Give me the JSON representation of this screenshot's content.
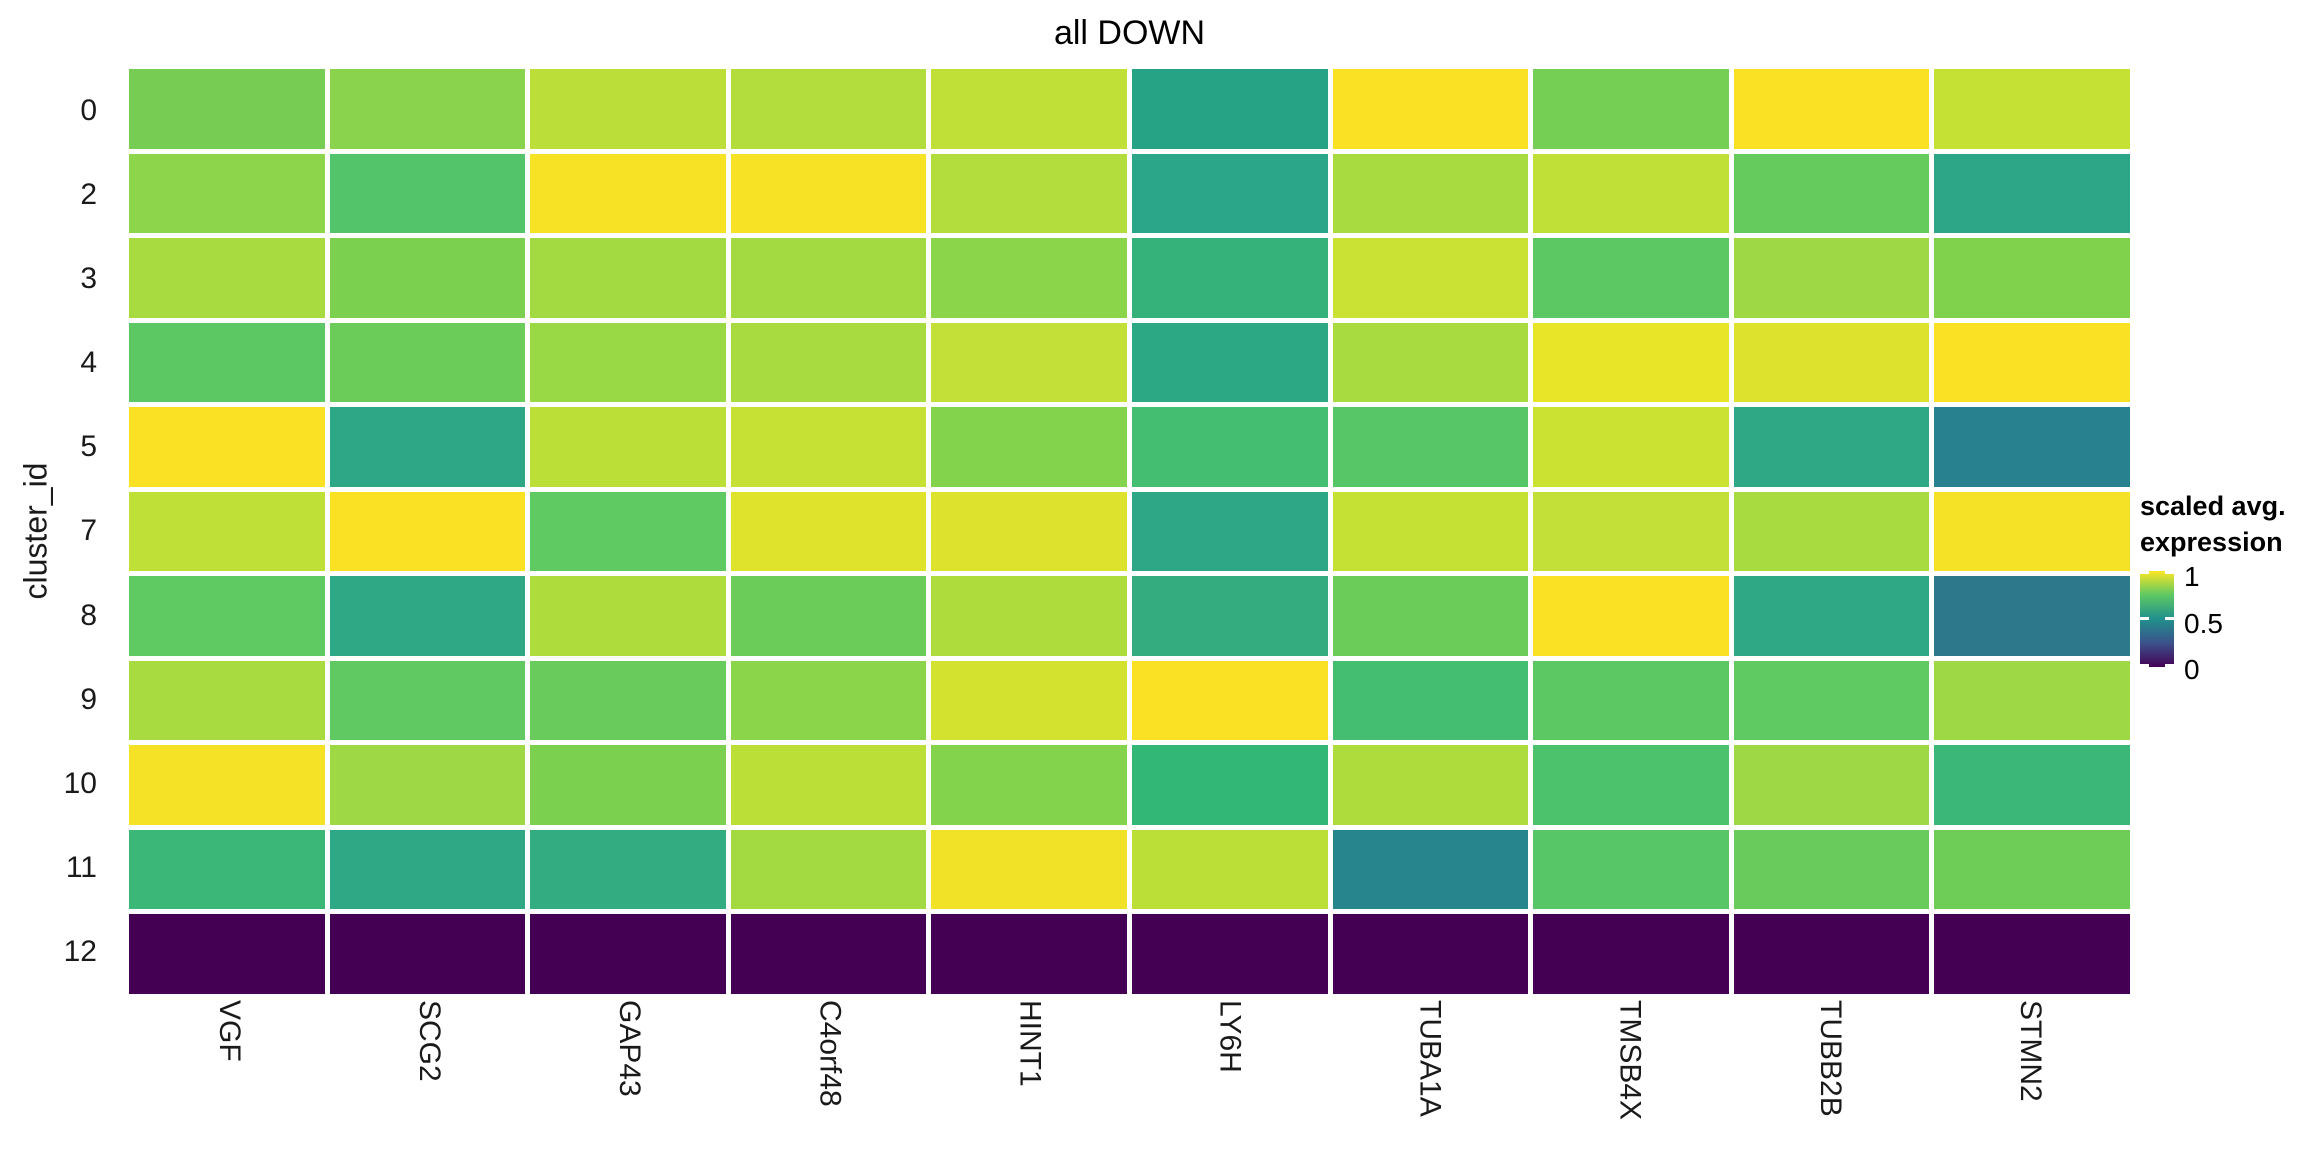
{
  "chart_data": {
    "type": "heatmap",
    "title": "all DOWN",
    "xlabel": "",
    "ylabel": "cluster_id",
    "row_labels": [
      "0",
      "2",
      "3",
      "4",
      "5",
      "7",
      "8",
      "9",
      "10",
      "11",
      "12"
    ],
    "col_labels": [
      "VGF",
      "SCG2",
      "GAP43",
      "C4orf48",
      "HINT1",
      "LY6H",
      "TUBA1A",
      "TMSB4X",
      "TUBB2B",
      "STMN2"
    ],
    "legend": {
      "title_lines": [
        "scaled avg.",
        "expression"
      ],
      "tick_labels": [
        "1",
        "0.5",
        "0"
      ],
      "colormap": "viridis",
      "gradient_stops": [
        "#440154",
        "#3B528B",
        "#21908C",
        "#5DC863",
        "#FDE725"
      ]
    },
    "grid_line_color": "#FFFFFF",
    "background": "#FFFFFF",
    "cell_colors": [
      [
        "#77CD53",
        "#8AD34C",
        "#BBDF38",
        "#B2DD3C",
        "#C0E037",
        "#26A385",
        "#FBE123",
        "#74CF54",
        "#FBE123",
        "#C4E134"
      ],
      [
        "#8DD54A",
        "#53C46A",
        "#F7E225",
        "#F7E225",
        "#B2DD3C",
        "#2BA689",
        "#A8DB3F",
        "#C0E037",
        "#66CB5D",
        "#2CA687"
      ],
      [
        "#A8DB3F",
        "#7BD14F",
        "#A3DA42",
        "#A3DA42",
        "#8BD54A",
        "#35B279",
        "#C9E233",
        "#5BC863",
        "#9ED845",
        "#80D24D"
      ],
      [
        "#5BC863",
        "#6BCC59",
        "#9AD946",
        "#A8DB3F",
        "#C2E037",
        "#2DA884",
        "#A8DB3F",
        "#E8E528",
        "#DDE32C",
        "#FBE123"
      ],
      [
        "#FBE123",
        "#2EA786",
        "#BCDF38",
        "#C6E133",
        "#84D34C",
        "#44BE70",
        "#57C667",
        "#CCE232",
        "#2EA885",
        "#27818E"
      ],
      [
        "#BFE036",
        "#FBE123",
        "#5FC962",
        "#DFE32C",
        "#DDE32C",
        "#2EA786",
        "#C4E134",
        "#C2E037",
        "#A8DB3F",
        "#F5E226"
      ],
      [
        "#5FC962",
        "#2FA886",
        "#ADDC3C",
        "#6BCC59",
        "#ADDC3C",
        "#35AC80",
        "#6BCC59",
        "#FBE123",
        "#2FA886",
        "#2E788C"
      ],
      [
        "#A8DB3F",
        "#60C961",
        "#68CB5C",
        "#8BD54A",
        "#D3E22F",
        "#FBE123",
        "#44BE70",
        "#5BC863",
        "#5FC962",
        "#9ED845"
      ],
      [
        "#F5E226",
        "#9ED845",
        "#7BD14F",
        "#BCDF38",
        "#84D34C",
        "#32B777",
        "#ADDC3C",
        "#4CC26D",
        "#9ED845",
        "#3BB878"
      ],
      [
        "#3BB878",
        "#2FA886",
        "#32AC80",
        "#A3DA42",
        "#F1E227",
        "#BCDF38",
        "#27858D",
        "#57C667",
        "#68CB5C",
        "#6ECD57"
      ],
      [
        "#440154",
        "#440154",
        "#440154",
        "#440154",
        "#440154",
        "#440154",
        "#440154",
        "#440154",
        "#440154",
        "#440154"
      ]
    ],
    "values_est": [
      [
        0.66,
        0.71,
        0.82,
        0.8,
        0.84,
        0.42,
        0.98,
        0.66,
        0.98,
        0.85
      ],
      [
        0.72,
        0.57,
        0.97,
        0.97,
        0.8,
        0.43,
        0.78,
        0.84,
        0.62,
        0.43
      ],
      [
        0.78,
        0.68,
        0.77,
        0.77,
        0.72,
        0.48,
        0.86,
        0.59,
        0.75,
        0.69
      ],
      [
        0.59,
        0.63,
        0.74,
        0.78,
        0.84,
        0.44,
        0.78,
        0.93,
        0.9,
        0.98
      ],
      [
        0.98,
        0.44,
        0.83,
        0.85,
        0.7,
        0.53,
        0.58,
        0.87,
        0.44,
        0.32
      ],
      [
        0.83,
        0.98,
        0.6,
        0.9,
        0.9,
        0.44,
        0.85,
        0.84,
        0.78,
        0.96
      ],
      [
        0.6,
        0.44,
        0.79,
        0.63,
        0.79,
        0.46,
        0.63,
        0.98,
        0.44,
        0.29
      ],
      [
        0.78,
        0.6,
        0.62,
        0.72,
        0.88,
        0.98,
        0.53,
        0.59,
        0.6,
        0.75
      ],
      [
        0.96,
        0.75,
        0.68,
        0.83,
        0.7,
        0.49,
        0.79,
        0.55,
        0.75,
        0.5
      ],
      [
        0.5,
        0.44,
        0.46,
        0.77,
        0.95,
        0.83,
        0.33,
        0.58,
        0.62,
        0.64
      ],
      [
        0.0,
        0.0,
        0.0,
        0.0,
        0.0,
        0.0,
        0.0,
        0.0,
        0.0,
        0.0
      ]
    ]
  }
}
